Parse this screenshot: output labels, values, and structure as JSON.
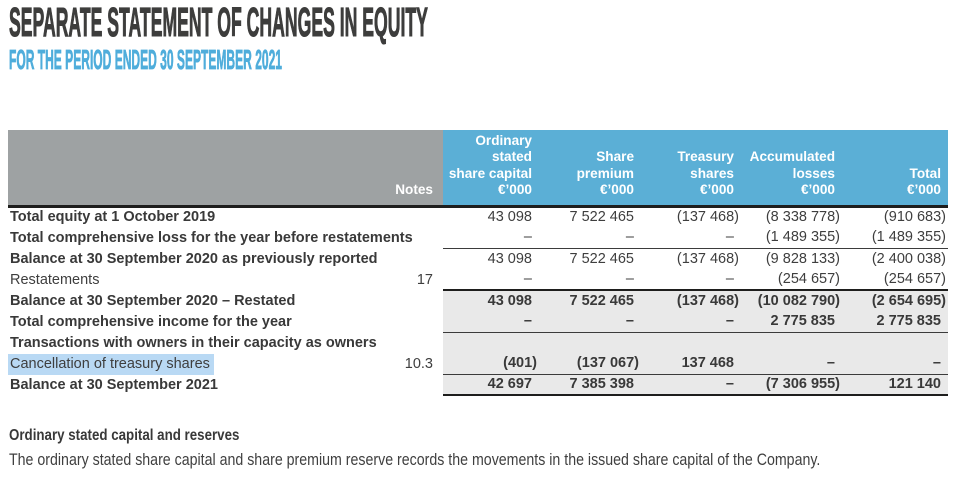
{
  "header": {
    "title": "SEPARATE STATEMENT OF CHANGES IN EQUITY",
    "subtitle": "FOR THE PERIOD ENDED 30 SEPTEMBER 2021"
  },
  "table": {
    "notes_label": "Notes",
    "columns": [
      {
        "label": "Ordinary\nstated\nshare capital",
        "unit": "€’000"
      },
      {
        "label": "Share\npremium",
        "unit": "€’000"
      },
      {
        "label": "Treasury\nshares",
        "unit": "€’000"
      },
      {
        "label": "Accumulated\nlosses",
        "unit": "€’000"
      },
      {
        "label": "Total",
        "unit": "€’000"
      }
    ],
    "rows": [
      {
        "label": "Total equity at 1 October 2019",
        "note": "",
        "values": [
          "43 098",
          "7 522 465",
          "(137 468)",
          "(8 338 778)",
          "(910 683)"
        ]
      },
      {
        "label": "Total comprehensive loss for the year before restatements",
        "note": "",
        "values": [
          "–",
          "–",
          "–",
          "(1 489 355)",
          "(1 489 355)"
        ]
      },
      {
        "label": "Balance at 30 September 2020 as previously reported",
        "note": "",
        "values": [
          "43 098",
          "7 522 465",
          "(137 468)",
          "(9 828 133)",
          "(2 400 038)"
        ]
      },
      {
        "label": "Restatements",
        "note": "17",
        "values": [
          "–",
          "–",
          "–",
          "(254 657)",
          "(254 657)"
        ]
      },
      {
        "label": "Balance at 30 September 2020 – Restated",
        "note": "",
        "values": [
          "43 098",
          "7 522 465",
          "(137 468)",
          "(10 082 790)",
          "(2 654 695)"
        ]
      },
      {
        "label": "Total comprehensive income for the year",
        "note": "",
        "values": [
          "–",
          "–",
          "–",
          "2 775 835",
          "2 775 835"
        ]
      },
      {
        "label": "Transactions with owners in their capacity as owners",
        "note": "",
        "values": [
          "",
          "",
          "",
          "",
          ""
        ]
      },
      {
        "label": "Cancellation of treasury shares",
        "note": "10.3",
        "values": [
          "(401)",
          "(137 067)",
          "137 468",
          "–",
          "–"
        ]
      },
      {
        "label": "Balance at 30 September 2021",
        "note": "",
        "values": [
          "42 697",
          "7 385 398",
          "–",
          "(7 306 955)",
          "121 140"
        ]
      }
    ]
  },
  "footer": {
    "heading": "Ordinary stated capital and reserves",
    "body": "The ordinary stated share capital and share premium reserve records the movements in the issued share capital of the Company."
  },
  "colors": {
    "accent_blue": "#5BAFD6",
    "header_gray": "#9EA2A3",
    "row_shade": "#E9E9E9",
    "selection_highlight": "#B9D9F4",
    "title_charcoal": "#3D3D3C",
    "subtitle_blue": "#4FADDB"
  }
}
